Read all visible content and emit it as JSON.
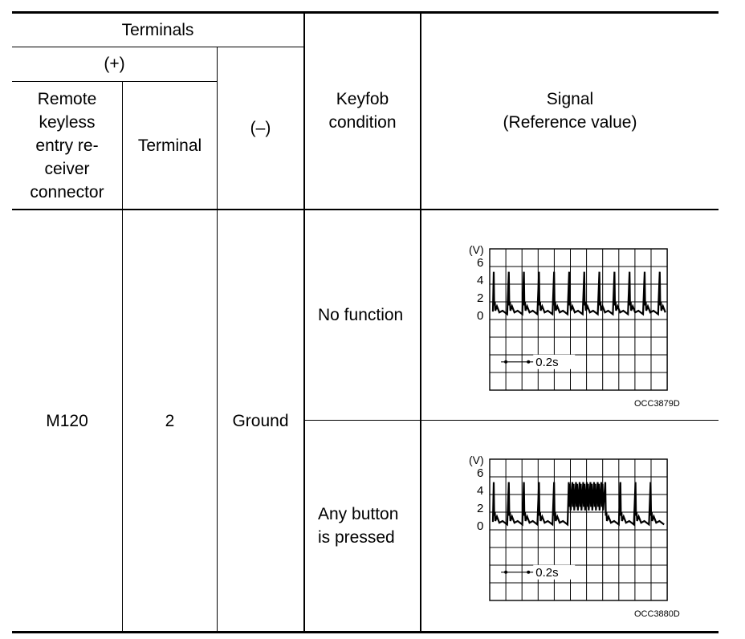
{
  "header": {
    "terminals": "Terminals",
    "plus": "(+)",
    "connector": [
      "Remote",
      "keyless",
      "entry re-",
      "ceiver",
      "connector"
    ],
    "terminal": "Terminal",
    "minus": "(–)",
    "keyfob_condition": [
      "Keyfob",
      "condition"
    ],
    "signal": [
      "Signal",
      "(Reference value)"
    ]
  },
  "row": {
    "connector": "M120",
    "terminal": "2",
    "minus": "Ground"
  },
  "conditions": [
    {
      "label": [
        "No function"
      ],
      "scope": {
        "unit": "(V)",
        "y_ticks": [
          "6",
          "4",
          "2",
          "0"
        ],
        "time_scale": "0.2s",
        "figure_code": "OCC3879D",
        "burst": false
      }
    },
    {
      "label": [
        "Any button",
        "is pressed"
      ],
      "scope": {
        "unit": "(V)",
        "y_ticks": [
          "6",
          "4",
          "2",
          "0"
        ],
        "time_scale": "0.2s",
        "figure_code": "OCC3880D",
        "burst": true
      }
    }
  ]
}
